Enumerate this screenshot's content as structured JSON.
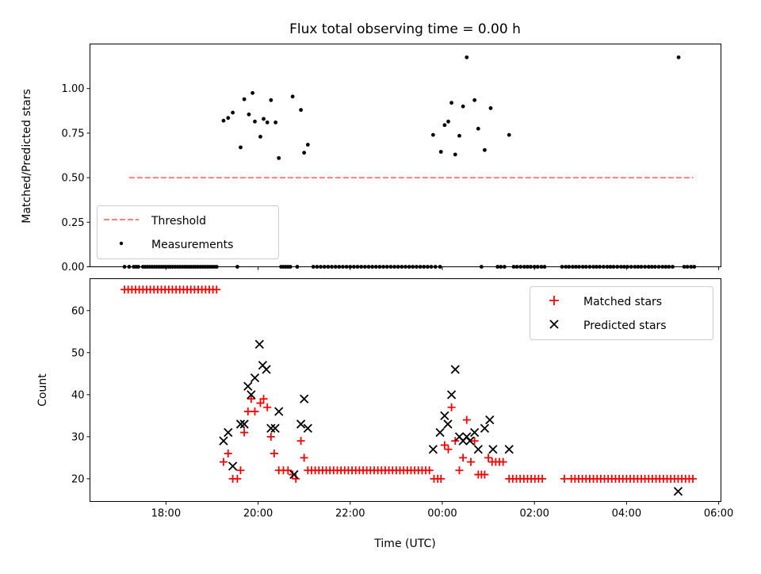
{
  "chart_data": [
    {
      "type": "scatter",
      "panel": "top",
      "title": "Flux total observing time = 0.00 h",
      "xlabel": "",
      "ylabel": "Matched/Predicted stars",
      "xlim": [
        16.35,
        30.05
      ],
      "ylim": [
        0.0,
        1.25
      ],
      "xticks": [
        18,
        20,
        22,
        24,
        26,
        28,
        30
      ],
      "yticks": [
        0.0,
        0.25,
        0.5,
        0.75,
        1.0
      ],
      "ytick_labels": [
        "0.00",
        "0.25",
        "0.50",
        "0.75",
        "1.00"
      ],
      "legend_position": "lower-left",
      "series": [
        {
          "name": "Threshold",
          "style": "dashed-line",
          "color": "#ff7f7f",
          "x": [
            17.2,
            29.45
          ],
          "y": [
            0.5,
            0.5
          ]
        },
        {
          "name": "Measurements",
          "style": "dot",
          "color": "#000000",
          "points": [
            [
              19.25,
              0.82
            ],
            [
              19.35,
              0.835
            ],
            [
              19.45,
              0.865
            ],
            [
              19.62,
              0.67
            ],
            [
              19.7,
              0.94
            ],
            [
              19.8,
              0.855
            ],
            [
              19.88,
              0.975
            ],
            [
              19.93,
              0.815
            ],
            [
              20.05,
              0.73
            ],
            [
              20.12,
              0.83
            ],
            [
              20.2,
              0.81
            ],
            [
              20.28,
              0.935
            ],
            [
              20.38,
              0.81
            ],
            [
              20.45,
              0.61
            ],
            [
              20.75,
              0.955
            ],
            [
              20.93,
              0.88
            ],
            [
              21.0,
              0.64
            ],
            [
              21.08,
              0.685
            ],
            [
              23.8,
              0.74
            ],
            [
              23.97,
              0.645
            ],
            [
              24.05,
              0.795
            ],
            [
              24.13,
              0.815
            ],
            [
              24.2,
              0.92
            ],
            [
              24.28,
              0.63
            ],
            [
              24.37,
              0.735
            ],
            [
              24.45,
              0.9
            ],
            [
              24.53,
              1.175
            ],
            [
              24.7,
              0.935
            ],
            [
              24.78,
              0.775
            ],
            [
              24.92,
              0.655
            ],
            [
              25.05,
              0.89
            ],
            [
              25.45,
              0.74
            ],
            [
              29.13,
              1.175
            ]
          ],
          "zero_points": [
            17.1,
            17.2,
            17.3,
            17.35,
            17.4,
            17.5,
            17.55,
            17.6,
            17.65,
            17.7,
            17.75,
            17.8,
            17.85,
            17.9,
            17.95,
            18.0,
            18.05,
            18.1,
            18.15,
            18.2,
            18.25,
            18.3,
            18.35,
            18.4,
            18.45,
            18.5,
            18.55,
            18.6,
            18.65,
            18.7,
            18.75,
            18.8,
            18.85,
            18.9,
            18.95,
            19.0,
            19.05,
            19.1,
            19.55,
            20.5,
            20.55,
            20.6,
            20.65,
            20.7,
            20.85,
            21.2,
            21.28,
            21.36,
            21.44,
            21.52,
            21.6,
            21.68,
            21.76,
            21.84,
            21.92,
            22.0,
            22.08,
            22.16,
            22.24,
            22.32,
            22.4,
            22.48,
            22.56,
            22.64,
            22.72,
            22.8,
            22.88,
            22.96,
            23.04,
            23.12,
            23.2,
            23.28,
            23.36,
            23.44,
            23.52,
            23.6,
            23.68,
            23.76,
            23.85,
            23.95,
            24.85,
            25.2,
            25.27,
            25.35,
            25.55,
            25.62,
            25.7,
            25.78,
            25.85,
            25.92,
            26.0,
            26.07,
            26.15,
            26.22,
            26.6,
            26.68,
            26.75,
            26.83,
            26.9,
            26.97,
            27.05,
            27.12,
            27.2,
            27.28,
            27.35,
            27.42,
            27.5,
            27.58,
            27.65,
            27.72,
            27.8,
            27.88,
            27.95,
            28.02,
            28.1,
            28.18,
            28.25,
            28.32,
            28.4,
            28.48,
            28.55,
            28.62,
            28.7,
            28.78,
            28.85,
            28.92,
            29.0,
            29.25,
            29.32,
            29.4,
            29.47
          ]
        }
      ]
    },
    {
      "type": "scatter",
      "panel": "bottom",
      "title": "",
      "xlabel": "Time (UTC)",
      "ylabel": "Count",
      "xlim": [
        16.35,
        30.05
      ],
      "ylim": [
        14.6,
        67.6
      ],
      "xticks": [
        18,
        20,
        22,
        24,
        26,
        28,
        30
      ],
      "xtick_labels": [
        "18:00",
        "20:00",
        "22:00",
        "00:00",
        "02:00",
        "04:00",
        "06:00"
      ],
      "yticks": [
        20,
        30,
        40,
        50,
        60
      ],
      "ytick_labels": [
        "20",
        "30",
        "40",
        "50",
        "60"
      ],
      "legend_position": "upper-right",
      "series": [
        {
          "name": "Matched stars",
          "marker": "plus",
          "color": "#ff0000",
          "points": [
            [
              17.1,
              65
            ],
            [
              17.18,
              65
            ],
            [
              17.26,
              65
            ],
            [
              17.34,
              65
            ],
            [
              17.42,
              65
            ],
            [
              17.5,
              65
            ],
            [
              17.58,
              65
            ],
            [
              17.66,
              65
            ],
            [
              17.74,
              65
            ],
            [
              17.82,
              65
            ],
            [
              17.9,
              65
            ],
            [
              17.98,
              65
            ],
            [
              18.06,
              65
            ],
            [
              18.14,
              65
            ],
            [
              18.22,
              65
            ],
            [
              18.3,
              65
            ],
            [
              18.38,
              65
            ],
            [
              18.46,
              65
            ],
            [
              18.54,
              65
            ],
            [
              18.62,
              65
            ],
            [
              18.7,
              65
            ],
            [
              18.78,
              65
            ],
            [
              18.86,
              65
            ],
            [
              18.94,
              65
            ],
            [
              19.02,
              65
            ],
            [
              19.1,
              65
            ],
            [
              19.25,
              24
            ],
            [
              19.35,
              26
            ],
            [
              19.45,
              20
            ],
            [
              19.55,
              20
            ],
            [
              19.62,
              22
            ],
            [
              19.7,
              31
            ],
            [
              19.78,
              36
            ],
            [
              19.85,
              39
            ],
            [
              19.93,
              36
            ],
            [
              20.05,
              38
            ],
            [
              20.12,
              39
            ],
            [
              20.2,
              37
            ],
            [
              20.28,
              30
            ],
            [
              20.35,
              26
            ],
            [
              20.45,
              22
            ],
            [
              20.55,
              22
            ],
            [
              20.65,
              22
            ],
            [
              20.75,
              21
            ],
            [
              20.82,
              20
            ],
            [
              20.93,
              29
            ],
            [
              21.0,
              25
            ],
            [
              21.08,
              22
            ],
            [
              21.16,
              22
            ],
            [
              21.24,
              22
            ],
            [
              21.32,
              22
            ],
            [
              21.4,
              22
            ],
            [
              21.48,
              22
            ],
            [
              21.56,
              22
            ],
            [
              21.64,
              22
            ],
            [
              21.72,
              22
            ],
            [
              21.8,
              22
            ],
            [
              21.88,
              22
            ],
            [
              21.96,
              22
            ],
            [
              22.04,
              22
            ],
            [
              22.12,
              22
            ],
            [
              22.2,
              22
            ],
            [
              22.28,
              22
            ],
            [
              22.36,
              22
            ],
            [
              22.44,
              22
            ],
            [
              22.52,
              22
            ],
            [
              22.6,
              22
            ],
            [
              22.68,
              22
            ],
            [
              22.76,
              22
            ],
            [
              22.84,
              22
            ],
            [
              22.92,
              22
            ],
            [
              23.0,
              22
            ],
            [
              23.08,
              22
            ],
            [
              23.16,
              22
            ],
            [
              23.24,
              22
            ],
            [
              23.32,
              22
            ],
            [
              23.4,
              22
            ],
            [
              23.48,
              22
            ],
            [
              23.56,
              22
            ],
            [
              23.64,
              22
            ],
            [
              23.72,
              22
            ],
            [
              23.82,
              20
            ],
            [
              23.9,
              20
            ],
            [
              23.97,
              20
            ],
            [
              24.05,
              28
            ],
            [
              24.13,
              27
            ],
            [
              24.2,
              37
            ],
            [
              24.28,
              29
            ],
            [
              24.37,
              22
            ],
            [
              24.45,
              25
            ],
            [
              24.53,
              34
            ],
            [
              24.62,
              24
            ],
            [
              24.7,
              29
            ],
            [
              24.78,
              21
            ],
            [
              24.85,
              21
            ],
            [
              24.92,
              21
            ],
            [
              25.0,
              25
            ],
            [
              25.08,
              24
            ],
            [
              25.16,
              24
            ],
            [
              25.24,
              24
            ],
            [
              25.32,
              24
            ],
            [
              25.45,
              20
            ],
            [
              25.53,
              20
            ],
            [
              25.61,
              20
            ],
            [
              25.69,
              20
            ],
            [
              25.77,
              20
            ],
            [
              25.85,
              20
            ],
            [
              25.93,
              20
            ],
            [
              26.01,
              20
            ],
            [
              26.09,
              20
            ],
            [
              26.17,
              20
            ],
            [
              26.65,
              20
            ],
            [
              26.8,
              20
            ],
            [
              26.88,
              20
            ],
            [
              26.96,
              20
            ],
            [
              27.04,
              20
            ],
            [
              27.12,
              20
            ],
            [
              27.2,
              20
            ],
            [
              27.28,
              20
            ],
            [
              27.36,
              20
            ],
            [
              27.44,
              20
            ],
            [
              27.52,
              20
            ],
            [
              27.6,
              20
            ],
            [
              27.68,
              20
            ],
            [
              27.76,
              20
            ],
            [
              27.84,
              20
            ],
            [
              27.92,
              20
            ],
            [
              28.0,
              20
            ],
            [
              28.08,
              20
            ],
            [
              28.16,
              20
            ],
            [
              28.24,
              20
            ],
            [
              28.32,
              20
            ],
            [
              28.4,
              20
            ],
            [
              28.48,
              20
            ],
            [
              28.56,
              20
            ],
            [
              28.64,
              20
            ],
            [
              28.72,
              20
            ],
            [
              28.8,
              20
            ],
            [
              28.88,
              20
            ],
            [
              28.96,
              20
            ],
            [
              29.04,
              20
            ],
            [
              29.12,
              20
            ],
            [
              29.2,
              20
            ],
            [
              29.28,
              20
            ],
            [
              29.36,
              20
            ],
            [
              29.44,
              20
            ]
          ]
        },
        {
          "name": "Predicted stars",
          "marker": "x",
          "color": "#000000",
          "points": [
            [
              19.25,
              29
            ],
            [
              19.35,
              31
            ],
            [
              19.45,
              23
            ],
            [
              19.62,
              33
            ],
            [
              19.7,
              33
            ],
            [
              19.78,
              42
            ],
            [
              19.85,
              40
            ],
            [
              19.93,
              44
            ],
            [
              20.03,
              52
            ],
            [
              20.1,
              47
            ],
            [
              20.18,
              46
            ],
            [
              20.28,
              32
            ],
            [
              20.37,
              32
            ],
            [
              20.45,
              36
            ],
            [
              20.78,
              21
            ],
            [
              20.93,
              33
            ],
            [
              21.0,
              39
            ],
            [
              21.08,
              32
            ],
            [
              23.8,
              27
            ],
            [
              23.95,
              31
            ],
            [
              24.05,
              35
            ],
            [
              24.12,
              33
            ],
            [
              24.2,
              40
            ],
            [
              24.28,
              46
            ],
            [
              24.37,
              30
            ],
            [
              24.45,
              29
            ],
            [
              24.53,
              30
            ],
            [
              24.6,
              29
            ],
            [
              24.7,
              31
            ],
            [
              24.78,
              27
            ],
            [
              24.92,
              32
            ],
            [
              25.03,
              34
            ],
            [
              25.1,
              27
            ],
            [
              25.45,
              27
            ],
            [
              29.12,
              17
            ]
          ]
        }
      ]
    }
  ]
}
